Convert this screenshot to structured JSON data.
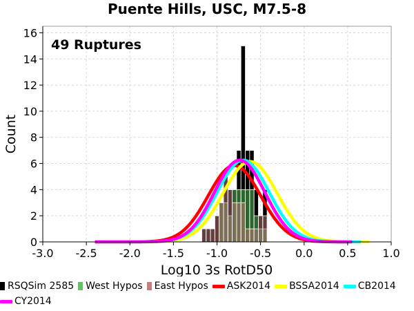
{
  "chart_data": {
    "type": "bar",
    "title": "Puente Hills, USC, M7.5-8",
    "xlabel": "Log10 3s RotD50",
    "ylabel": "Count",
    "annotation": "49 Ruptures",
    "xlim": [
      -3.0,
      1.0
    ],
    "ylim": [
      0,
      16.5
    ],
    "xticks": [
      "-3.0",
      "-2.5",
      "-2.0",
      "-1.5",
      "-1.0",
      "-0.5",
      "0.0",
      "0.5",
      "1.0"
    ],
    "yticks": [
      "0",
      "2",
      "4",
      "6",
      "8",
      "10",
      "12",
      "14",
      "16"
    ],
    "grid": true,
    "bin_width": 0.05,
    "histograms": [
      {
        "name": "RSQSim 2585",
        "color": "#000000",
        "bins": [
          {
            "x": -1.15,
            "value": 1
          },
          {
            "x": -1.1,
            "value": 1
          },
          {
            "x": -1.05,
            "value": 1
          },
          {
            "x": -1.0,
            "value": 2
          },
          {
            "x": -0.95,
            "value": 3
          },
          {
            "x": -0.9,
            "value": 5
          },
          {
            "x": -0.85,
            "value": 4
          },
          {
            "x": -0.8,
            "value": 4
          },
          {
            "x": -0.75,
            "value": 7
          },
          {
            "x": -0.7,
            "value": 15
          },
          {
            "x": -0.65,
            "value": 7
          },
          {
            "x": -0.6,
            "value": 7
          },
          {
            "x": -0.55,
            "value": 4
          },
          {
            "x": -0.5,
            "value": 2
          },
          {
            "x": -0.45,
            "value": 4
          }
        ]
      },
      {
        "name": "West Hypos",
        "color": "#5cc85c",
        "bins": [
          {
            "x": -0.95,
            "value": 3
          },
          {
            "x": -0.9,
            "value": 3
          },
          {
            "x": -0.85,
            "value": 2
          },
          {
            "x": -0.8,
            "value": 4
          },
          {
            "x": -0.75,
            "value": 4
          },
          {
            "x": -0.7,
            "value": 4
          },
          {
            "x": -0.65,
            "value": 4
          },
          {
            "x": -0.6,
            "value": 4
          },
          {
            "x": -0.55,
            "value": 2
          },
          {
            "x": -0.5,
            "value": 1
          },
          {
            "x": -0.45,
            "value": 1
          }
        ]
      },
      {
        "name": "East Hypos",
        "color": "#c87c7c",
        "bins": [
          {
            "x": -1.15,
            "value": 1
          },
          {
            "x": -1.1,
            "value": 1
          },
          {
            "x": -1.05,
            "value": 1
          },
          {
            "x": -1.0,
            "value": 2
          },
          {
            "x": -0.95,
            "value": 3
          },
          {
            "x": -0.9,
            "value": 5
          },
          {
            "x": -0.85,
            "value": 4
          },
          {
            "x": -0.8,
            "value": 3
          },
          {
            "x": -0.75,
            "value": 3
          },
          {
            "x": -0.7,
            "value": 3
          },
          {
            "x": -0.65,
            "value": 1
          },
          {
            "x": -0.6,
            "value": 1
          },
          {
            "x": -0.55,
            "value": 1
          },
          {
            "x": -0.5,
            "value": 2
          },
          {
            "x": -0.45,
            "value": 2
          }
        ]
      }
    ],
    "curves": [
      {
        "name": "ASK2014",
        "color": "#ff0000",
        "mean": -0.8,
        "std": 0.3,
        "peak": 5.85,
        "xmin": -2.4,
        "xmax": 0.5
      },
      {
        "name": "BSSA2014",
        "color": "#ffff00",
        "mean": -0.62,
        "std": 0.31,
        "peak": 6.15,
        "xmin": -2.3,
        "xmax": 0.75
      },
      {
        "name": "CB2014",
        "color": "#00ffff",
        "mean": -0.7,
        "std": 0.3,
        "peak": 6.25,
        "xmin": -2.35,
        "xmax": 0.65
      },
      {
        "name": "CY2014",
        "color": "#ff00ff",
        "mean": -0.74,
        "std": 0.29,
        "peak": 6.25,
        "xmin": -2.4,
        "xmax": 0.55
      }
    ]
  }
}
